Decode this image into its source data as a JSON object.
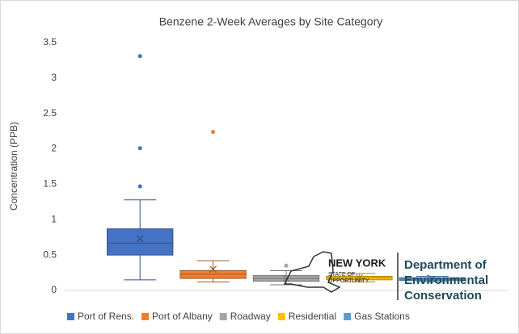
{
  "chart_data": {
    "type": "box",
    "title": "Benzene 2-Week Averages by Site Category",
    "y_label": "Concentration (PPB)",
    "ylim": [
      0,
      3.5
    ],
    "yticks": [
      0,
      0.5,
      1,
      1.5,
      2,
      2.5,
      3,
      3.5
    ],
    "grid": false,
    "legend": "bottom",
    "series": [
      {
        "name": "Port of Rens.",
        "color": "#4472c4",
        "whisker_low": 0.15,
        "q1": 0.5,
        "median": 0.67,
        "q3": 0.87,
        "whisker_high": 1.28,
        "mean": 0.73,
        "outliers": [
          1.47,
          2.01,
          3.31
        ]
      },
      {
        "name": "Port of Albany",
        "color": "#ed7d31",
        "whisker_low": 0.12,
        "q1": 0.17,
        "median": 0.23,
        "q3": 0.28,
        "whisker_high": 0.42,
        "mean": 0.3,
        "outliers": [
          2.24
        ]
      },
      {
        "name": "Roadway",
        "color": "#a5a5a5",
        "whisker_low": 0.08,
        "q1": 0.13,
        "median": 0.17,
        "q3": 0.21,
        "whisker_high": 0.28,
        "mean": 0.17,
        "outliers": [
          0.35
        ]
      },
      {
        "name": "Residential",
        "color": "#ffc000",
        "whisker_low": 0.12,
        "q1": 0.15,
        "median": 0.18,
        "q3": 0.2,
        "whisker_high": 0.24,
        "mean": 0.18,
        "outliers": []
      },
      {
        "name": "Gas Stations",
        "color": "#5b9bd5",
        "whisker_low": 0.12,
        "q1": 0.14,
        "median": 0.16,
        "q3": 0.18,
        "whisker_high": 0.2,
        "mean": 0.16,
        "outliers": []
      }
    ]
  },
  "logo": {
    "state": "NEW YORK",
    "tagline": [
      "STATE OF",
      "OPPORTUNITY"
    ],
    "department": [
      "Department of",
      "Environmental",
      "Conservation"
    ]
  }
}
